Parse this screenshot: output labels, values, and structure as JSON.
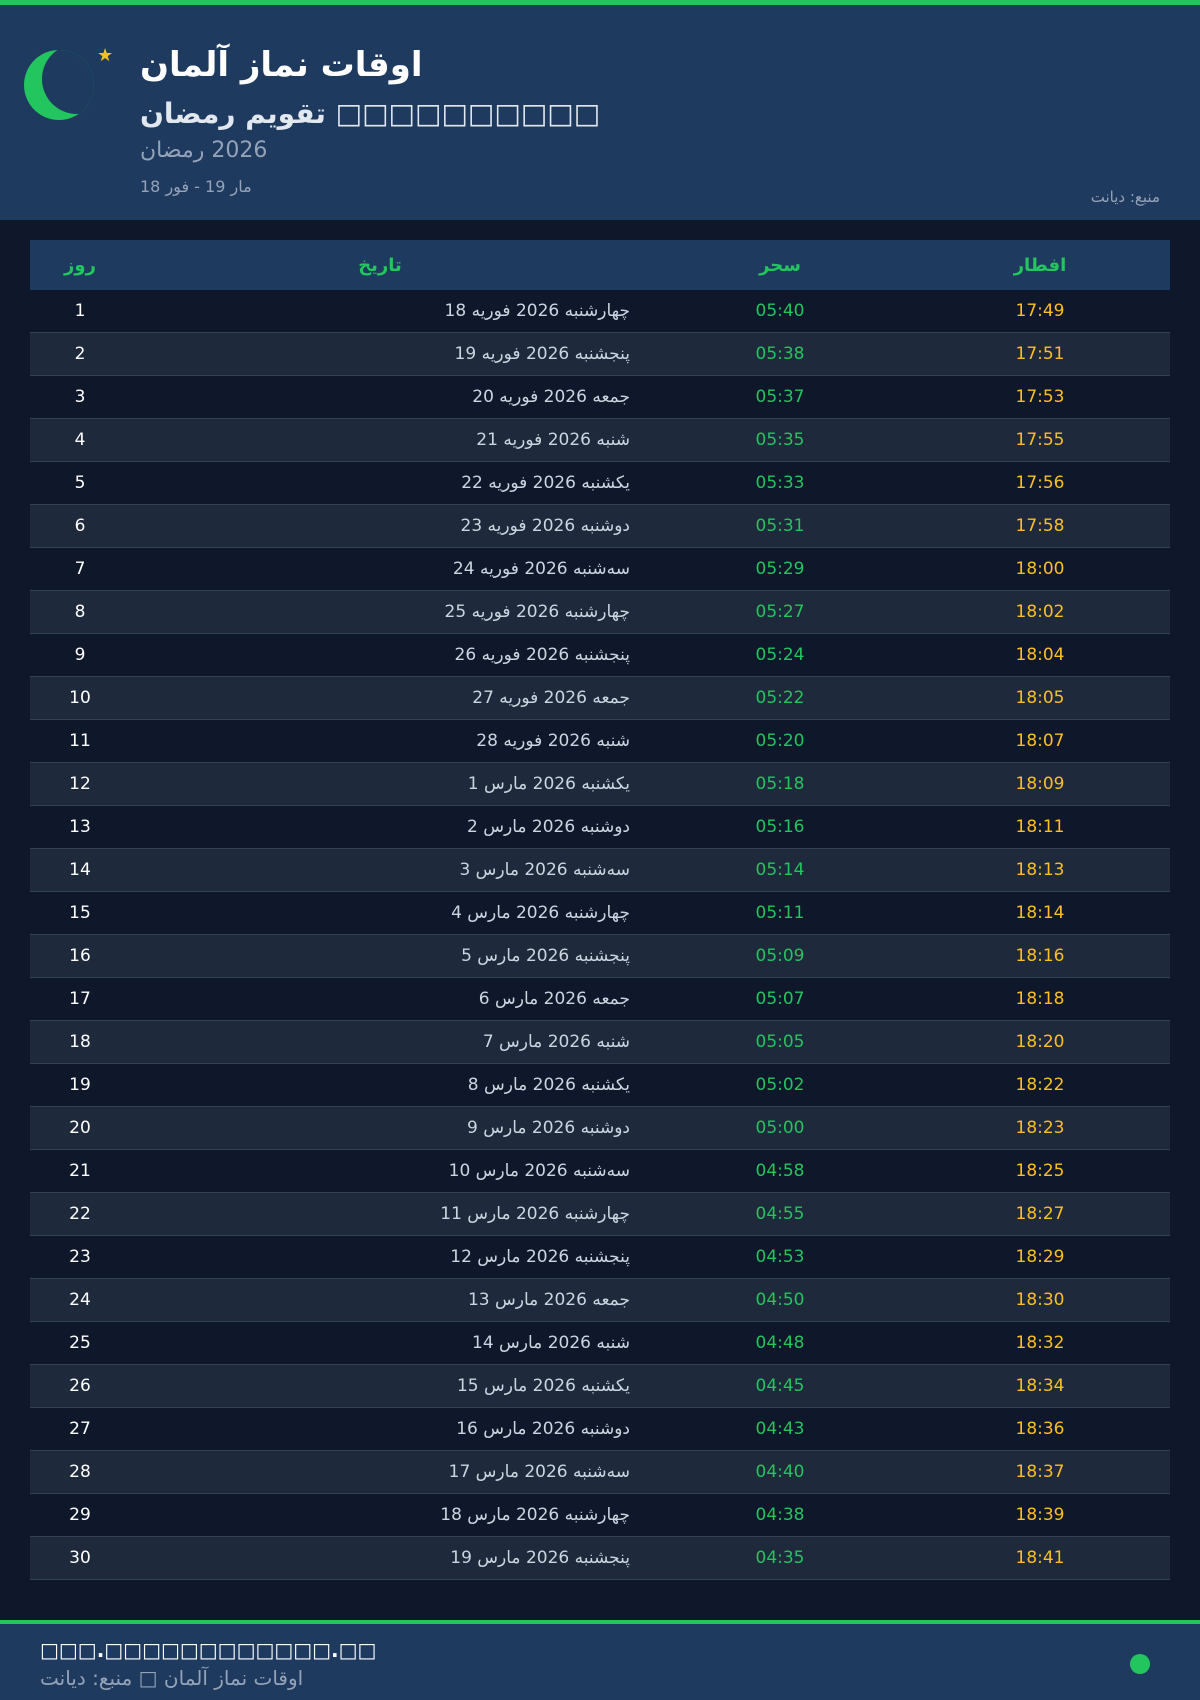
{
  "header": {
    "title": "اوقات نماز آلمان",
    "subtitle": "□□□□□□□□□□ تقویم رمضان",
    "year": "2026 رمضان",
    "range": "مار 19 - فور 18",
    "source": "منبع: دیانت",
    "icons": [
      "crescent-moon-icon",
      "star-icon"
    ]
  },
  "colors": {
    "accent": "#22c55e",
    "iftar": "#fbbf24",
    "header_bg": "#1e3a5f",
    "page_bg": "#0f172a"
  },
  "table": {
    "headers": {
      "day": "روز",
      "date": "تاریخ",
      "sahar": "سحر",
      "iftar": "افطار"
    },
    "rows": [
      {
        "day": "1",
        "date": "چهارشنبه 2026 فوریه 18",
        "sahar": "05:40",
        "iftar": "17:49"
      },
      {
        "day": "2",
        "date": "پنجشنبه 2026 فوریه 19",
        "sahar": "05:38",
        "iftar": "17:51"
      },
      {
        "day": "3",
        "date": "جمعه 2026 فوریه 20",
        "sahar": "05:37",
        "iftar": "17:53"
      },
      {
        "day": "4",
        "date": "شنبه 2026 فوریه 21",
        "sahar": "05:35",
        "iftar": "17:55"
      },
      {
        "day": "5",
        "date": "یکشنبه 2026 فوریه 22",
        "sahar": "05:33",
        "iftar": "17:56"
      },
      {
        "day": "6",
        "date": "دوشنبه 2026 فوریه 23",
        "sahar": "05:31",
        "iftar": "17:58"
      },
      {
        "day": "7",
        "date": "سه‌شنبه 2026 فوریه 24",
        "sahar": "05:29",
        "iftar": "18:00"
      },
      {
        "day": "8",
        "date": "چهارشنبه 2026 فوریه 25",
        "sahar": "05:27",
        "iftar": "18:02"
      },
      {
        "day": "9",
        "date": "پنجشنبه 2026 فوریه 26",
        "sahar": "05:24",
        "iftar": "18:04"
      },
      {
        "day": "10",
        "date": "جمعه 2026 فوریه 27",
        "sahar": "05:22",
        "iftar": "18:05"
      },
      {
        "day": "11",
        "date": "شنبه 2026 فوریه 28",
        "sahar": "05:20",
        "iftar": "18:07"
      },
      {
        "day": "12",
        "date": "یکشنبه 2026 مارس 1",
        "sahar": "05:18",
        "iftar": "18:09"
      },
      {
        "day": "13",
        "date": "دوشنبه 2026 مارس 2",
        "sahar": "05:16",
        "iftar": "18:11"
      },
      {
        "day": "14",
        "date": "سه‌شنبه 2026 مارس 3",
        "sahar": "05:14",
        "iftar": "18:13"
      },
      {
        "day": "15",
        "date": "چهارشنبه 2026 مارس 4",
        "sahar": "05:11",
        "iftar": "18:14"
      },
      {
        "day": "16",
        "date": "پنجشنبه 2026 مارس 5",
        "sahar": "05:09",
        "iftar": "18:16"
      },
      {
        "day": "17",
        "date": "جمعه 2026 مارس 6",
        "sahar": "05:07",
        "iftar": "18:18"
      },
      {
        "day": "18",
        "date": "شنبه 2026 مارس 7",
        "sahar": "05:05",
        "iftar": "18:20"
      },
      {
        "day": "19",
        "date": "یکشنبه 2026 مارس 8",
        "sahar": "05:02",
        "iftar": "18:22"
      },
      {
        "day": "20",
        "date": "دوشنبه 2026 مارس 9",
        "sahar": "05:00",
        "iftar": "18:23"
      },
      {
        "day": "21",
        "date": "سه‌شنبه 2026 مارس 10",
        "sahar": "04:58",
        "iftar": "18:25"
      },
      {
        "day": "22",
        "date": "چهارشنبه 2026 مارس 11",
        "sahar": "04:55",
        "iftar": "18:27"
      },
      {
        "day": "23",
        "date": "پنجشنبه 2026 مارس 12",
        "sahar": "04:53",
        "iftar": "18:29"
      },
      {
        "day": "24",
        "date": "جمعه 2026 مارس 13",
        "sahar": "04:50",
        "iftar": "18:30"
      },
      {
        "day": "25",
        "date": "شنبه 2026 مارس 14",
        "sahar": "04:48",
        "iftar": "18:32"
      },
      {
        "day": "26",
        "date": "یکشنبه 2026 مارس 15",
        "sahar": "04:45",
        "iftar": "18:34"
      },
      {
        "day": "27",
        "date": "دوشنبه 2026 مارس 16",
        "sahar": "04:43",
        "iftar": "18:36"
      },
      {
        "day": "28",
        "date": "سه‌شنبه 2026 مارس 17",
        "sahar": "04:40",
        "iftar": "18:37"
      },
      {
        "day": "29",
        "date": "چهارشنبه 2026 مارس 18",
        "sahar": "04:38",
        "iftar": "18:39"
      },
      {
        "day": "30",
        "date": "پنجشنبه 2026 مارس 19",
        "sahar": "04:35",
        "iftar": "18:41"
      }
    ]
  },
  "footer": {
    "url": "□□□.□□□□□□□□□□□□.□□",
    "text": "اوقات نماز آلمان □ منبع: دیانت"
  }
}
